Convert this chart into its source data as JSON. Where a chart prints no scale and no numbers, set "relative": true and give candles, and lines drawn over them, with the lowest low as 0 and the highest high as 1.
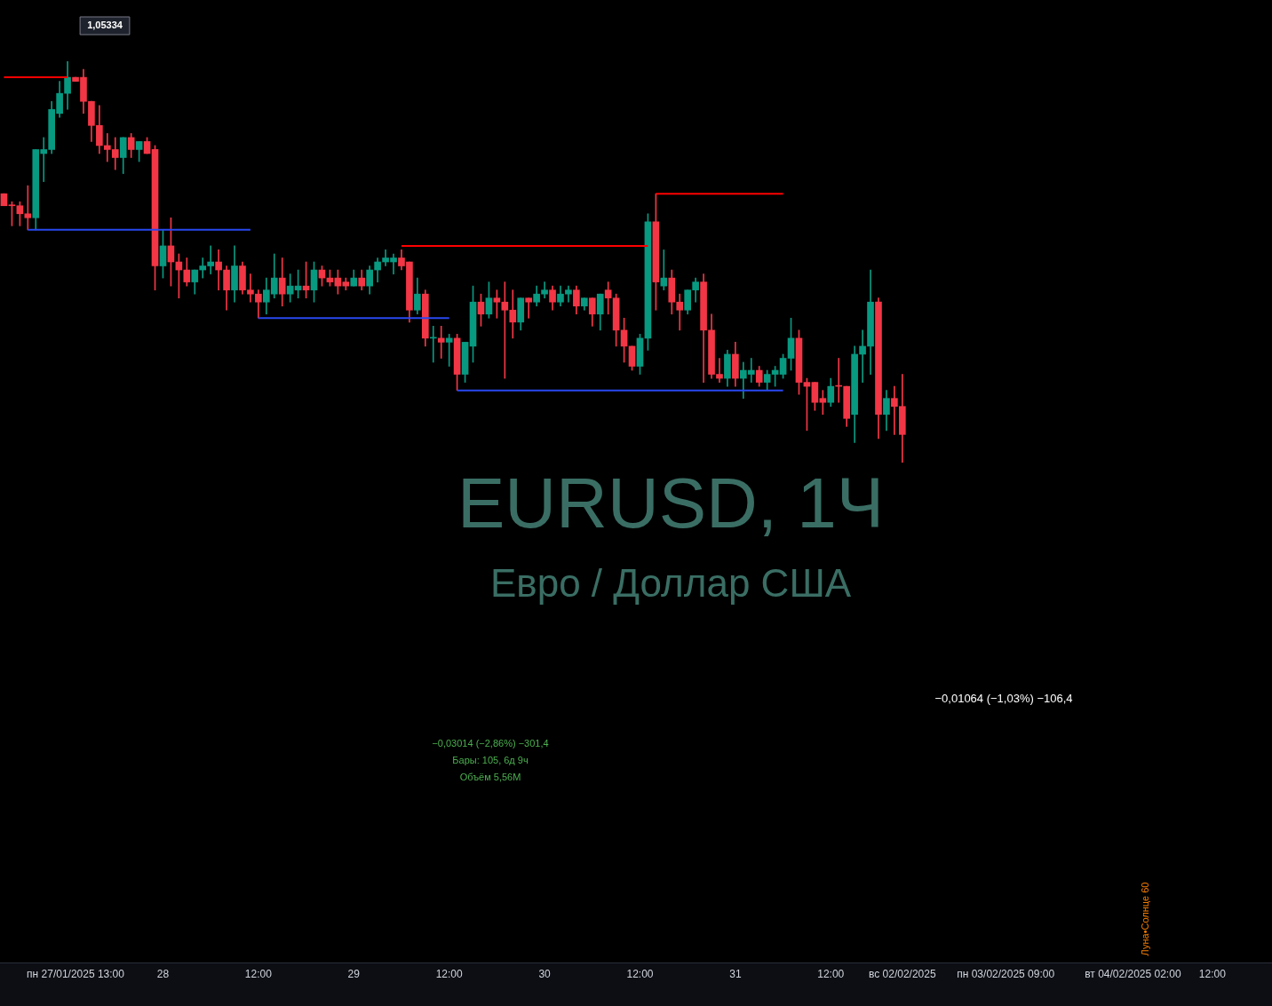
{
  "chart_data": {
    "type": "candlestick",
    "relative": true,
    "title": "EURUSD, 1Ч",
    "subtitle": "Евро / Доллар США",
    "categories": [
      null,
      null,
      null,
      null,
      null,
      null,
      null,
      null,
      null,
      "пн 27/01/2025 13:00",
      null,
      null,
      null,
      null,
      null,
      null,
      null,
      null,
      null,
      null,
      "28",
      null,
      null,
      null,
      null,
      null,
      null,
      null,
      null,
      null,
      null,
      null,
      "12:00",
      null,
      null,
      null,
      null,
      null,
      null,
      null,
      null,
      null,
      null,
      null,
      "29",
      null,
      null,
      null,
      null,
      null,
      null,
      null,
      null,
      null,
      null,
      null,
      "12:00",
      null,
      null,
      null,
      null,
      null,
      null,
      null,
      null,
      null,
      null,
      null,
      "30",
      null,
      null,
      null,
      null,
      null,
      null,
      null,
      null,
      null,
      null,
      null,
      "12:00",
      null,
      null,
      null,
      null,
      null,
      null,
      null,
      null,
      null,
      null,
      null,
      "31",
      null,
      null,
      null,
      null,
      null,
      null,
      null,
      null,
      null,
      null,
      null,
      "12:00",
      null,
      null,
      null,
      null,
      null,
      null,
      null,
      null,
      "вс 02/02/2025",
      null,
      null,
      null,
      null,
      null,
      null,
      null,
      null,
      null,
      null,
      null,
      null,
      "пн 03/02/2025 09:00",
      null,
      null,
      null,
      null,
      null,
      null,
      null,
      null,
      null,
      null,
      null,
      null,
      null,
      null,
      null,
      "вт 04/02/2025 02:00",
      null,
      null,
      null,
      null,
      null,
      null,
      null,
      null,
      null,
      "12:00",
      null,
      null,
      null,
      null,
      null,
      null,
      null
    ],
    "ohlc": [
      [
        0.67,
        0.67,
        0.64,
        0.64
      ],
      [
        0.64,
        0.65,
        0.59,
        0.64
      ],
      [
        0.64,
        0.65,
        0.59,
        0.62
      ],
      [
        0.62,
        0.69,
        0.58,
        0.61
      ],
      [
        0.61,
        0.78,
        0.58,
        0.78
      ],
      [
        0.77,
        0.81,
        0.7,
        0.78
      ],
      [
        0.78,
        0.9,
        0.77,
        0.88
      ],
      [
        0.87,
        0.95,
        0.86,
        0.92
      ],
      [
        0.92,
        1,
        0.88,
        0.96
      ],
      [
        0.96,
        0.96,
        0.95,
        0.95
      ],
      [
        0.96,
        0.98,
        0.87,
        0.9
      ],
      [
        0.9,
        0.9,
        0.8,
        0.84
      ],
      [
        0.84,
        0.89,
        0.77,
        0.79
      ],
      [
        0.79,
        0.82,
        0.75,
        0.78
      ],
      [
        0.78,
        0.81,
        0.73,
        0.76
      ],
      [
        0.76,
        0.81,
        0.72,
        0.81
      ],
      [
        0.81,
        0.82,
        0.76,
        0.78
      ],
      [
        0.78,
        0.8,
        0.75,
        0.8
      ],
      [
        0.8,
        0.81,
        0.77,
        0.77
      ],
      [
        0.78,
        0.79,
        0.43,
        0.49
      ],
      [
        0.49,
        0.58,
        0.46,
        0.54
      ],
      [
        0.54,
        0.61,
        0.44,
        0.5
      ],
      [
        0.5,
        0.52,
        0.41,
        0.48
      ],
      [
        0.48,
        0.51,
        0.44,
        0.45
      ],
      [
        0.45,
        0.48,
        0.42,
        0.48
      ],
      [
        0.48,
        0.51,
        0.46,
        0.49
      ],
      [
        0.49,
        0.54,
        0.47,
        0.5
      ],
      [
        0.5,
        0.53,
        0.43,
        0.48
      ],
      [
        0.48,
        0.49,
        0.38,
        0.43
      ],
      [
        0.43,
        0.54,
        0.4,
        0.49
      ],
      [
        0.49,
        0.5,
        0.42,
        0.43
      ],
      [
        0.43,
        0.47,
        0.4,
        0.42
      ],
      [
        0.42,
        0.43,
        0.36,
        0.4
      ],
      [
        0.4,
        0.46,
        0.37,
        0.43
      ],
      [
        0.42,
        0.52,
        0.41,
        0.46
      ],
      [
        0.46,
        0.51,
        0.39,
        0.42
      ],
      [
        0.42,
        0.47,
        0.4,
        0.44
      ],
      [
        0.43,
        0.48,
        0.41,
        0.44
      ],
      [
        0.44,
        0.5,
        0.41,
        0.43
      ],
      [
        0.43,
        0.5,
        0.4,
        0.48
      ],
      [
        0.48,
        0.49,
        0.44,
        0.46
      ],
      [
        0.46,
        0.48,
        0.44,
        0.45
      ],
      [
        0.46,
        0.48,
        0.42,
        0.44
      ],
      [
        0.45,
        0.46,
        0.43,
        0.44
      ],
      [
        0.44,
        0.48,
        0.44,
        0.46
      ],
      [
        0.46,
        0.48,
        0.43,
        0.44
      ],
      [
        0.44,
        0.49,
        0.42,
        0.48
      ],
      [
        0.48,
        0.51,
        0.45,
        0.5
      ],
      [
        0.5,
        0.53,
        0.49,
        0.51
      ],
      [
        0.5,
        0.52,
        0.47,
        0.51
      ],
      [
        0.51,
        0.53,
        0.48,
        0.49
      ],
      [
        0.5,
        0.5,
        0.35,
        0.38
      ],
      [
        0.38,
        0.46,
        0.37,
        0.42
      ],
      [
        0.42,
        0.43,
        0.29,
        0.31
      ],
      [
        0.31,
        0.34,
        0.25,
        0.31
      ],
      [
        0.31,
        0.34,
        0.26,
        0.3
      ],
      [
        0.3,
        0.32,
        0.24,
        0.31
      ],
      [
        0.31,
        0.32,
        0.18,
        0.22
      ],
      [
        0.22,
        0.3,
        0.2,
        0.3
      ],
      [
        0.29,
        0.44,
        0.25,
        0.4
      ],
      [
        0.4,
        0.42,
        0.34,
        0.37
      ],
      [
        0.37,
        0.45,
        0.36,
        0.41
      ],
      [
        0.41,
        0.43,
        0.36,
        0.4
      ],
      [
        0.4,
        0.45,
        0.21,
        0.38
      ],
      [
        0.38,
        0.43,
        0.31,
        0.35
      ],
      [
        0.35,
        0.41,
        0.33,
        0.41
      ],
      [
        0.41,
        0.41,
        0.36,
        0.4
      ],
      [
        0.4,
        0.44,
        0.39,
        0.42
      ],
      [
        0.42,
        0.45,
        0.41,
        0.43
      ],
      [
        0.43,
        0.44,
        0.38,
        0.4
      ],
      [
        0.4,
        0.44,
        0.39,
        0.42
      ],
      [
        0.42,
        0.44,
        0.4,
        0.43
      ],
      [
        0.43,
        0.44,
        0.37,
        0.39
      ],
      [
        0.39,
        0.41,
        0.38,
        0.41
      ],
      [
        0.41,
        0.41,
        0.34,
        0.37
      ],
      [
        0.37,
        0.42,
        0.33,
        0.42
      ],
      [
        0.43,
        0.45,
        0.37,
        0.41
      ],
      [
        0.41,
        0.42,
        0.29,
        0.33
      ],
      [
        0.33,
        0.36,
        0.25,
        0.29
      ],
      [
        0.29,
        0.29,
        0.23,
        0.24
      ],
      [
        0.24,
        0.32,
        0.22,
        0.31
      ],
      [
        0.31,
        0.62,
        0.28,
        0.6
      ],
      [
        0.6,
        0.67,
        0.38,
        0.45
      ],
      [
        0.44,
        0.53,
        0.43,
        0.46
      ],
      [
        0.46,
        0.48,
        0.37,
        0.4
      ],
      [
        0.4,
        0.42,
        0.33,
        0.38
      ],
      [
        0.38,
        0.43,
        0.37,
        0.43
      ],
      [
        0.43,
        0.46,
        0.4,
        0.45
      ],
      [
        0.45,
        0.47,
        0.2,
        0.33
      ],
      [
        0.33,
        0.37,
        0.21,
        0.22
      ],
      [
        0.22,
        0.26,
        0.2,
        0.21
      ],
      [
        0.21,
        0.28,
        0.19,
        0.27
      ],
      [
        0.27,
        0.3,
        0.19,
        0.21
      ],
      [
        0.21,
        0.25,
        0.16,
        0.23
      ],
      [
        0.22,
        0.26,
        0.2,
        0.23
      ],
      [
        0.23,
        0.24,
        0.19,
        0.2
      ],
      [
        0.2,
        0.23,
        0.18,
        0.22
      ],
      [
        0.22,
        0.24,
        0.19,
        0.23
      ],
      [
        0.22,
        0.27,
        0.21,
        0.26
      ],
      [
        0.26,
        0.36,
        0.23,
        0.31
      ],
      [
        0.31,
        0.33,
        0.17,
        0.2
      ],
      [
        0.2,
        0.21,
        0.08,
        0.19
      ],
      [
        0.2,
        0.2,
        0.13,
        0.15
      ],
      [
        0.16,
        0.18,
        0.12,
        0.15
      ],
      [
        0.15,
        0.21,
        0.14,
        0.19
      ],
      [
        0.19,
        0.26,
        0.15,
        0.19
      ],
      [
        0.19,
        0.19,
        0.09,
        0.11
      ],
      [
        0.12,
        0.29,
        0.05,
        0.27
      ],
      [
        0.27,
        0.33,
        0.2,
        0.29
      ],
      [
        0.29,
        0.48,
        0.22,
        0.4
      ],
      [
        0.4,
        0.41,
        0.06,
        0.12
      ],
      [
        0.12,
        0.18,
        0.08,
        0.16
      ],
      [
        0.16,
        0.19,
        0.07,
        0.14
      ],
      [
        0.14,
        0.22,
        0,
        0.07
      ],
      null,
      null,
      null,
      null,
      null,
      null,
      null,
      null,
      null,
      null,
      null,
      null,
      null,
      null,
      null,
      null,
      null,
      null,
      null,
      null,
      null,
      null,
      null,
      null,
      null,
      null,
      null,
      null,
      null,
      null,
      null,
      null,
      null,
      null,
      null,
      null,
      null,
      null,
      null,
      null,
      null,
      null,
      null,
      null,
      null,
      null
    ],
    "colors": [
      "#f23645",
      "#f23645",
      "#f23645",
      "#f23645",
      "#089981",
      "#089981",
      "#089981",
      "#089981",
      "#089981",
      "#f23645",
      "#f23645",
      "#f23645",
      "#f23645",
      "#f23645",
      "#f23645",
      "#089981",
      "#f23645",
      "#089981",
      "#f23645",
      "#f23645",
      "#089981",
      "#f23645",
      "#f23645",
      "#f23645",
      "#089981",
      "#089981",
      "#089981",
      "#f23645",
      "#f23645",
      "#089981",
      "#f23645",
      "#f23645",
      "#f23645",
      "#089981",
      "#089981",
      "#f23645",
      "#089981",
      "#089981",
      "#f23645",
      "#089981",
      "#f23645",
      "#f23645",
      "#f23645",
      "#f23645",
      "#089981",
      "#f23645",
      "#089981",
      "#089981",
      "#089981",
      "#089981",
      "#f23645",
      "#f23645",
      "#089981",
      "#f23645",
      "#089981",
      "#f23645",
      "#089981",
      "#f23645",
      "#089981",
      "#089981",
      "#f23645",
      "#089981",
      "#f23645",
      "#f23645",
      "#f23645",
      "#089981",
      "#f23645",
      "#089981",
      "#089981",
      "#f23645",
      "#089981",
      "#089981",
      "#f23645",
      "#089981",
      "#f23645",
      "#089981",
      "#f23645",
      "#f23645",
      "#f23645",
      "#f23645",
      "#089981",
      "#089981",
      "#f23645",
      "#089981",
      "#f23645",
      "#f23645",
      "#089981",
      "#089981",
      "#f23645",
      "#f23645",
      "#f23645",
      "#089981",
      "#f23645",
      "#089981",
      "#089981",
      "#f23645",
      "#089981",
      "#089981",
      "#089981",
      "#089981",
      "#f23645",
      "#f23645",
      "#f23645",
      "#f23645",
      "#089981",
      "#f23645",
      "#f23645",
      "#089981",
      "#089981",
      "#089981",
      "#f23645",
      "#089981",
      "#f23645",
      "#f23645",
      null,
      null,
      null,
      null,
      null,
      null,
      null,
      null,
      null,
      null,
      null,
      null,
      null,
      null,
      null,
      null,
      null,
      null,
      null,
      null,
      null,
      null,
      null,
      null,
      null,
      null,
      null,
      null,
      null,
      null,
      null,
      null,
      null,
      null,
      null,
      null,
      null,
      null,
      null,
      null,
      null,
      null,
      null,
      null,
      null,
      null
    ],
    "series": [
      {
        "type": "line",
        "color": "#ff0000",
        "values": [
          0.96,
          null,
          null,
          null,
          null,
          null,
          null,
          null,
          0.96,
          null,
          null,
          null,
          null,
          null,
          null,
          null,
          null,
          null,
          null,
          null,
          null,
          null,
          null,
          null,
          null,
          null,
          null,
          null,
          null,
          null,
          null,
          null,
          null,
          null,
          null,
          null,
          null,
          null,
          null,
          null,
          null,
          null,
          null,
          null,
          null,
          null,
          null,
          null,
          null,
          null,
          null,
          null,
          null,
          null,
          null,
          null,
          null,
          null,
          null,
          null,
          null,
          null,
          null,
          null,
          null,
          null,
          null,
          null,
          null,
          null,
          null,
          null,
          null,
          null,
          null,
          null,
          null,
          null,
          null,
          null,
          null,
          null,
          null,
          null,
          null,
          null,
          null,
          null,
          null,
          null,
          null,
          null,
          null,
          null,
          null,
          null,
          null,
          null,
          null,
          null,
          null,
          null,
          null,
          null,
          null,
          null,
          null,
          null,
          null,
          null,
          null,
          null,
          null,
          null,
          null,
          null,
          null,
          null,
          null,
          null,
          null,
          null,
          null,
          null,
          null,
          null,
          null,
          null,
          null,
          null,
          null,
          null,
          null,
          null,
          null,
          null,
          null,
          null,
          null,
          null,
          null,
          null,
          null,
          null,
          null,
          null,
          null,
          null,
          null,
          null,
          null,
          null,
          null,
          null,
          null,
          null,
          null,
          null,
          null,
          null
        ]
      },
      {
        "type": "line",
        "color": "#2848f0",
        "values": [
          null,
          null,
          null,
          0.58,
          null,
          null,
          null,
          null,
          null,
          null,
          null,
          null,
          null,
          null,
          null,
          null,
          null,
          null,
          null,
          null,
          null,
          null,
          null,
          null,
          null,
          null,
          null,
          null,
          null,
          null,
          null,
          0.58,
          null,
          null,
          null,
          null,
          null,
          null,
          null,
          null,
          null,
          null,
          null,
          null,
          null,
          null,
          null,
          null,
          null,
          null,
          null,
          null,
          null,
          null,
          null,
          null,
          null,
          null,
          null,
          null,
          null,
          null,
          null,
          null,
          null,
          null,
          null,
          null,
          null,
          null,
          null,
          null,
          null,
          null,
          null,
          null,
          null,
          null,
          null,
          null,
          null,
          null,
          null,
          null,
          null,
          null,
          null,
          null,
          null,
          null,
          null,
          null,
          null,
          null,
          null,
          null,
          null,
          null,
          null,
          null,
          null,
          null,
          null,
          null,
          null,
          null,
          null,
          null,
          null,
          null,
          null,
          null,
          null,
          null,
          null,
          null,
          null,
          null,
          null,
          null,
          null,
          null,
          null,
          null,
          null,
          null,
          null,
          null,
          null,
          null,
          null,
          null,
          null,
          null,
          null,
          null,
          null,
          null,
          null,
          null,
          null,
          null,
          null,
          null,
          null,
          null,
          null,
          null,
          null,
          null,
          null,
          null,
          null,
          null,
          null,
          null,
          null,
          null,
          null,
          null
        ]
      },
      {
        "type": "line",
        "color": "#2848f0",
        "values": [
          null,
          null,
          null,
          null,
          null,
          null,
          null,
          null,
          null,
          null,
          null,
          null,
          null,
          null,
          null,
          null,
          null,
          null,
          null,
          null,
          null,
          null,
          null,
          null,
          null,
          null,
          null,
          null,
          null,
          null,
          null,
          null,
          0.36,
          null,
          null,
          null,
          null,
          null,
          null,
          null,
          null,
          null,
          null,
          null,
          null,
          null,
          null,
          null,
          null,
          null,
          null,
          null,
          null,
          null,
          null,
          null,
          0.36,
          null,
          null,
          null,
          null,
          null,
          null,
          null,
          null,
          null,
          null,
          null,
          null,
          null,
          null,
          null,
          null,
          null,
          null,
          null,
          null,
          null,
          null,
          null,
          null,
          null,
          null,
          null,
          null,
          null,
          null,
          null,
          null,
          null,
          null,
          null,
          null,
          null,
          null,
          null,
          null,
          null,
          null,
          null,
          null,
          null,
          null,
          null,
          null,
          null,
          null,
          null,
          null,
          null,
          null,
          null,
          null,
          null,
          null,
          null,
          null,
          null,
          null,
          null,
          null,
          null,
          null,
          null,
          null,
          null,
          null,
          null,
          null,
          null,
          null,
          null,
          null,
          null,
          null,
          null,
          null,
          null,
          null,
          null,
          null,
          null,
          null,
          null,
          null,
          null,
          null,
          null,
          null,
          null,
          null,
          null,
          null,
          null,
          null,
          null,
          null,
          null,
          null,
          null
        ]
      },
      {
        "type": "line",
        "color": "#ff0000",
        "values": [
          null,
          null,
          null,
          null,
          null,
          null,
          null,
          null,
          null,
          null,
          null,
          null,
          null,
          null,
          null,
          null,
          null,
          null,
          null,
          null,
          null,
          null,
          null,
          null,
          null,
          null,
          null,
          null,
          null,
          null,
          null,
          null,
          null,
          null,
          null,
          null,
          null,
          null,
          null,
          null,
          null,
          null,
          null,
          null,
          null,
          null,
          null,
          null,
          null,
          null,
          0.54,
          null,
          null,
          null,
          null,
          null,
          null,
          null,
          null,
          null,
          null,
          null,
          null,
          null,
          null,
          null,
          null,
          null,
          null,
          null,
          null,
          null,
          null,
          null,
          null,
          null,
          null,
          null,
          null,
          null,
          null,
          0.54,
          null,
          null,
          null,
          null,
          null,
          null,
          null,
          null,
          null,
          null,
          null,
          null,
          null,
          null,
          null,
          null,
          null,
          null,
          null,
          null,
          null,
          null,
          null,
          null,
          null,
          null,
          null,
          null,
          null,
          null,
          null,
          null,
          null,
          null,
          null,
          null,
          null,
          null,
          null,
          null,
          null,
          null,
          null,
          null,
          null,
          null,
          null,
          null,
          null,
          null,
          null,
          null,
          null,
          null,
          null,
          null,
          null,
          null,
          null,
          null,
          null,
          null,
          null,
          null,
          null,
          null,
          null,
          null,
          null,
          null,
          null,
          null,
          null,
          null,
          null,
          null,
          null,
          null
        ]
      },
      {
        "type": "line",
        "color": "#2848f0",
        "values": [
          null,
          null,
          null,
          null,
          null,
          null,
          null,
          null,
          null,
          null,
          null,
          null,
          null,
          null,
          null,
          null,
          null,
          null,
          null,
          null,
          null,
          null,
          null,
          null,
          null,
          null,
          null,
          null,
          null,
          null,
          null,
          null,
          null,
          null,
          null,
          null,
          null,
          null,
          null,
          null,
          null,
          null,
          null,
          null,
          null,
          null,
          null,
          null,
          null,
          null,
          null,
          null,
          null,
          null,
          null,
          null,
          null,
          0.18,
          null,
          null,
          null,
          null,
          null,
          null,
          null,
          null,
          null,
          null,
          null,
          null,
          null,
          null,
          null,
          null,
          null,
          null,
          null,
          null,
          null,
          null,
          null,
          null,
          null,
          null,
          null,
          null,
          null,
          null,
          null,
          null,
          null,
          null,
          null,
          null,
          null,
          null,
          null,
          null,
          0.18,
          null,
          null,
          null,
          null,
          null,
          null,
          null,
          null,
          null,
          null,
          null,
          null,
          null,
          null,
          null,
          null,
          null,
          null,
          null,
          null,
          null,
          null,
          null,
          null,
          null,
          null,
          null,
          null,
          null,
          null,
          null,
          null,
          null,
          null,
          null,
          null,
          null,
          null,
          null,
          null,
          null,
          null,
          null,
          null,
          null,
          null,
          null,
          null,
          null,
          null,
          null,
          null,
          null,
          null,
          null,
          null,
          null,
          null,
          null,
          null,
          null
        ]
      },
      {
        "type": "line",
        "color": "#ff0000",
        "values": [
          null,
          null,
          null,
          null,
          null,
          null,
          null,
          null,
          null,
          null,
          null,
          null,
          null,
          null,
          null,
          null,
          null,
          null,
          null,
          null,
          null,
          null,
          null,
          null,
          null,
          null,
          null,
          null,
          null,
          null,
          null,
          null,
          null,
          null,
          null,
          null,
          null,
          null,
          null,
          null,
          null,
          null,
          null,
          null,
          null,
          null,
          null,
          null,
          null,
          null,
          null,
          null,
          null,
          null,
          null,
          null,
          null,
          null,
          null,
          null,
          null,
          null,
          null,
          null,
          null,
          null,
          null,
          null,
          null,
          null,
          null,
          null,
          null,
          null,
          null,
          null,
          null,
          null,
          null,
          null,
          null,
          null,
          0.67,
          null,
          null,
          null,
          null,
          null,
          null,
          null,
          null,
          null,
          null,
          null,
          null,
          null,
          null,
          null,
          0.67,
          null,
          null,
          null,
          null,
          null,
          null,
          null,
          null,
          null,
          null,
          null,
          null,
          null,
          null,
          null,
          null,
          null,
          null,
          null,
          null,
          null,
          null,
          null,
          null,
          null,
          null,
          null,
          null,
          null,
          null,
          null,
          null,
          null,
          null,
          null,
          null,
          null,
          null,
          null,
          null,
          null,
          null,
          null,
          null,
          null,
          null,
          null,
          null,
          null,
          null,
          null,
          null,
          null,
          null,
          null,
          null,
          null,
          null,
          null,
          null,
          null
        ]
      }
    ],
    "annotations": [
      "1,05334",
      "−0,03014 (−2,86%) −301,4",
      "Бары: 105, 6д 9ч",
      "Объём 5,56M",
      "−0,01064 (−1,03%) −106,4",
      "Луна•Солнце 60"
    ]
  }
}
